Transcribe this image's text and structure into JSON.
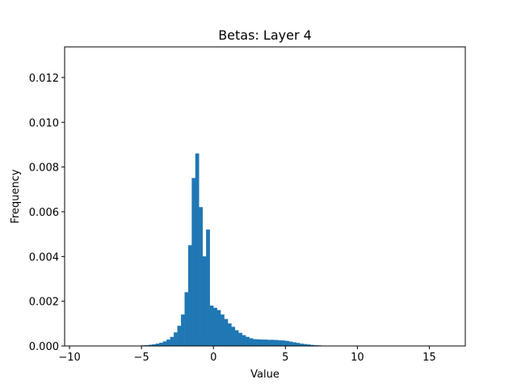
{
  "chart_data": {
    "type": "histogram",
    "title": "Betas: Layer 4",
    "xlabel": "Value",
    "ylabel": "Frequency",
    "color": "#1f77b4",
    "bins": [
      -5.5,
      -5.25,
      -5,
      -4.75,
      -4.5,
      -4.25,
      -4,
      -3.75,
      -3.5,
      -3.25,
      -3,
      -2.75,
      -2.5,
      -2.25,
      -2,
      -1.75,
      -1.5,
      -1.25,
      -1,
      -0.75,
      -0.5,
      -0.25,
      0,
      0.25,
      0.5,
      0.75,
      1,
      1.25,
      1.5,
      1.75,
      2,
      2.25,
      2.5,
      2.75,
      3,
      3.25,
      3.5,
      3.75,
      4,
      4.25,
      4.5,
      4.75,
      5,
      5.25,
      5.5,
      5.75,
      6,
      6.25,
      6.5,
      6.75,
      7,
      7.25,
      7.5,
      7.75,
      8,
      8.25,
      8.5
    ],
    "values": [
      5e-06,
      1e-05,
      2e-05,
      3e-05,
      5e-05,
      7e-05,
      0.0001,
      0.00014,
      0.0002,
      0.00028,
      0.0004,
      0.0006,
      0.0009,
      0.0014,
      0.0024,
      0.0045,
      0.0075,
      0.0086,
      0.0062,
      0.004,
      0.0052,
      0.0018,
      0.0017,
      0.0016,
      0.0014,
      0.0012,
      0.001,
      0.00085,
      0.0007,
      0.00058,
      0.00048,
      0.0004,
      0.00034,
      0.0003,
      0.00029,
      0.00028,
      0.00028,
      0.00027,
      0.00027,
      0.00026,
      0.00025,
      0.00024,
      0.00022,
      0.00019,
      0.00016,
      0.00013,
      0.0001,
      8e-05,
      6e-05,
      4e-05,
      3e-05,
      2e-05,
      1e-05,
      1e-05,
      5e-06,
      3e-06
    ],
    "xlim": [
      -10.34,
      17.5
    ],
    "ylim": [
      0,
      0.01337
    ],
    "xticks": [
      {
        "value": -10,
        "label": "−10"
      },
      {
        "value": -5,
        "label": "−5"
      },
      0,
      5,
      10,
      15
    ],
    "yticks": [
      {
        "value": 0,
        "label": "0.000"
      },
      {
        "value": 0.002,
        "label": "0.002"
      },
      {
        "value": 0.004,
        "label": "0.004"
      },
      {
        "value": 0.006,
        "label": "0.006"
      },
      {
        "value": 0.008,
        "label": "0.008"
      },
      {
        "value": 0.01,
        "label": "0.010"
      },
      {
        "value": 0.012,
        "label": "0.012"
      }
    ]
  }
}
